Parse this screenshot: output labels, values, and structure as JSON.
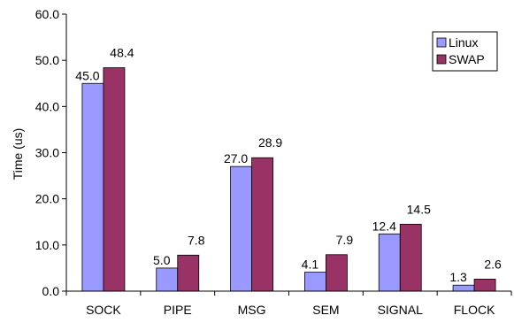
{
  "chart_data": {
    "type": "bar",
    "categories": [
      "SOCK",
      "PIPE",
      "MSG",
      "SEM",
      "SIGNAL",
      "FLOCK"
    ],
    "series": [
      {
        "name": "Linux",
        "values": [
          45.0,
          5.0,
          27.0,
          4.1,
          12.4,
          1.3
        ],
        "color": "#9999ff"
      },
      {
        "name": "SWAP",
        "values": [
          48.4,
          7.8,
          28.9,
          7.9,
          14.5,
          2.6
        ],
        "color": "#993366"
      }
    ],
    "title": "",
    "xlabel": "",
    "ylabel": "Time (us)",
    "ylim": [
      0,
      60
    ],
    "yticks": [
      "0.0",
      "10.0",
      "20.0",
      "30.0",
      "40.0",
      "50.0",
      "60.0"
    ],
    "grid": false,
    "legend_position": "top-right"
  }
}
